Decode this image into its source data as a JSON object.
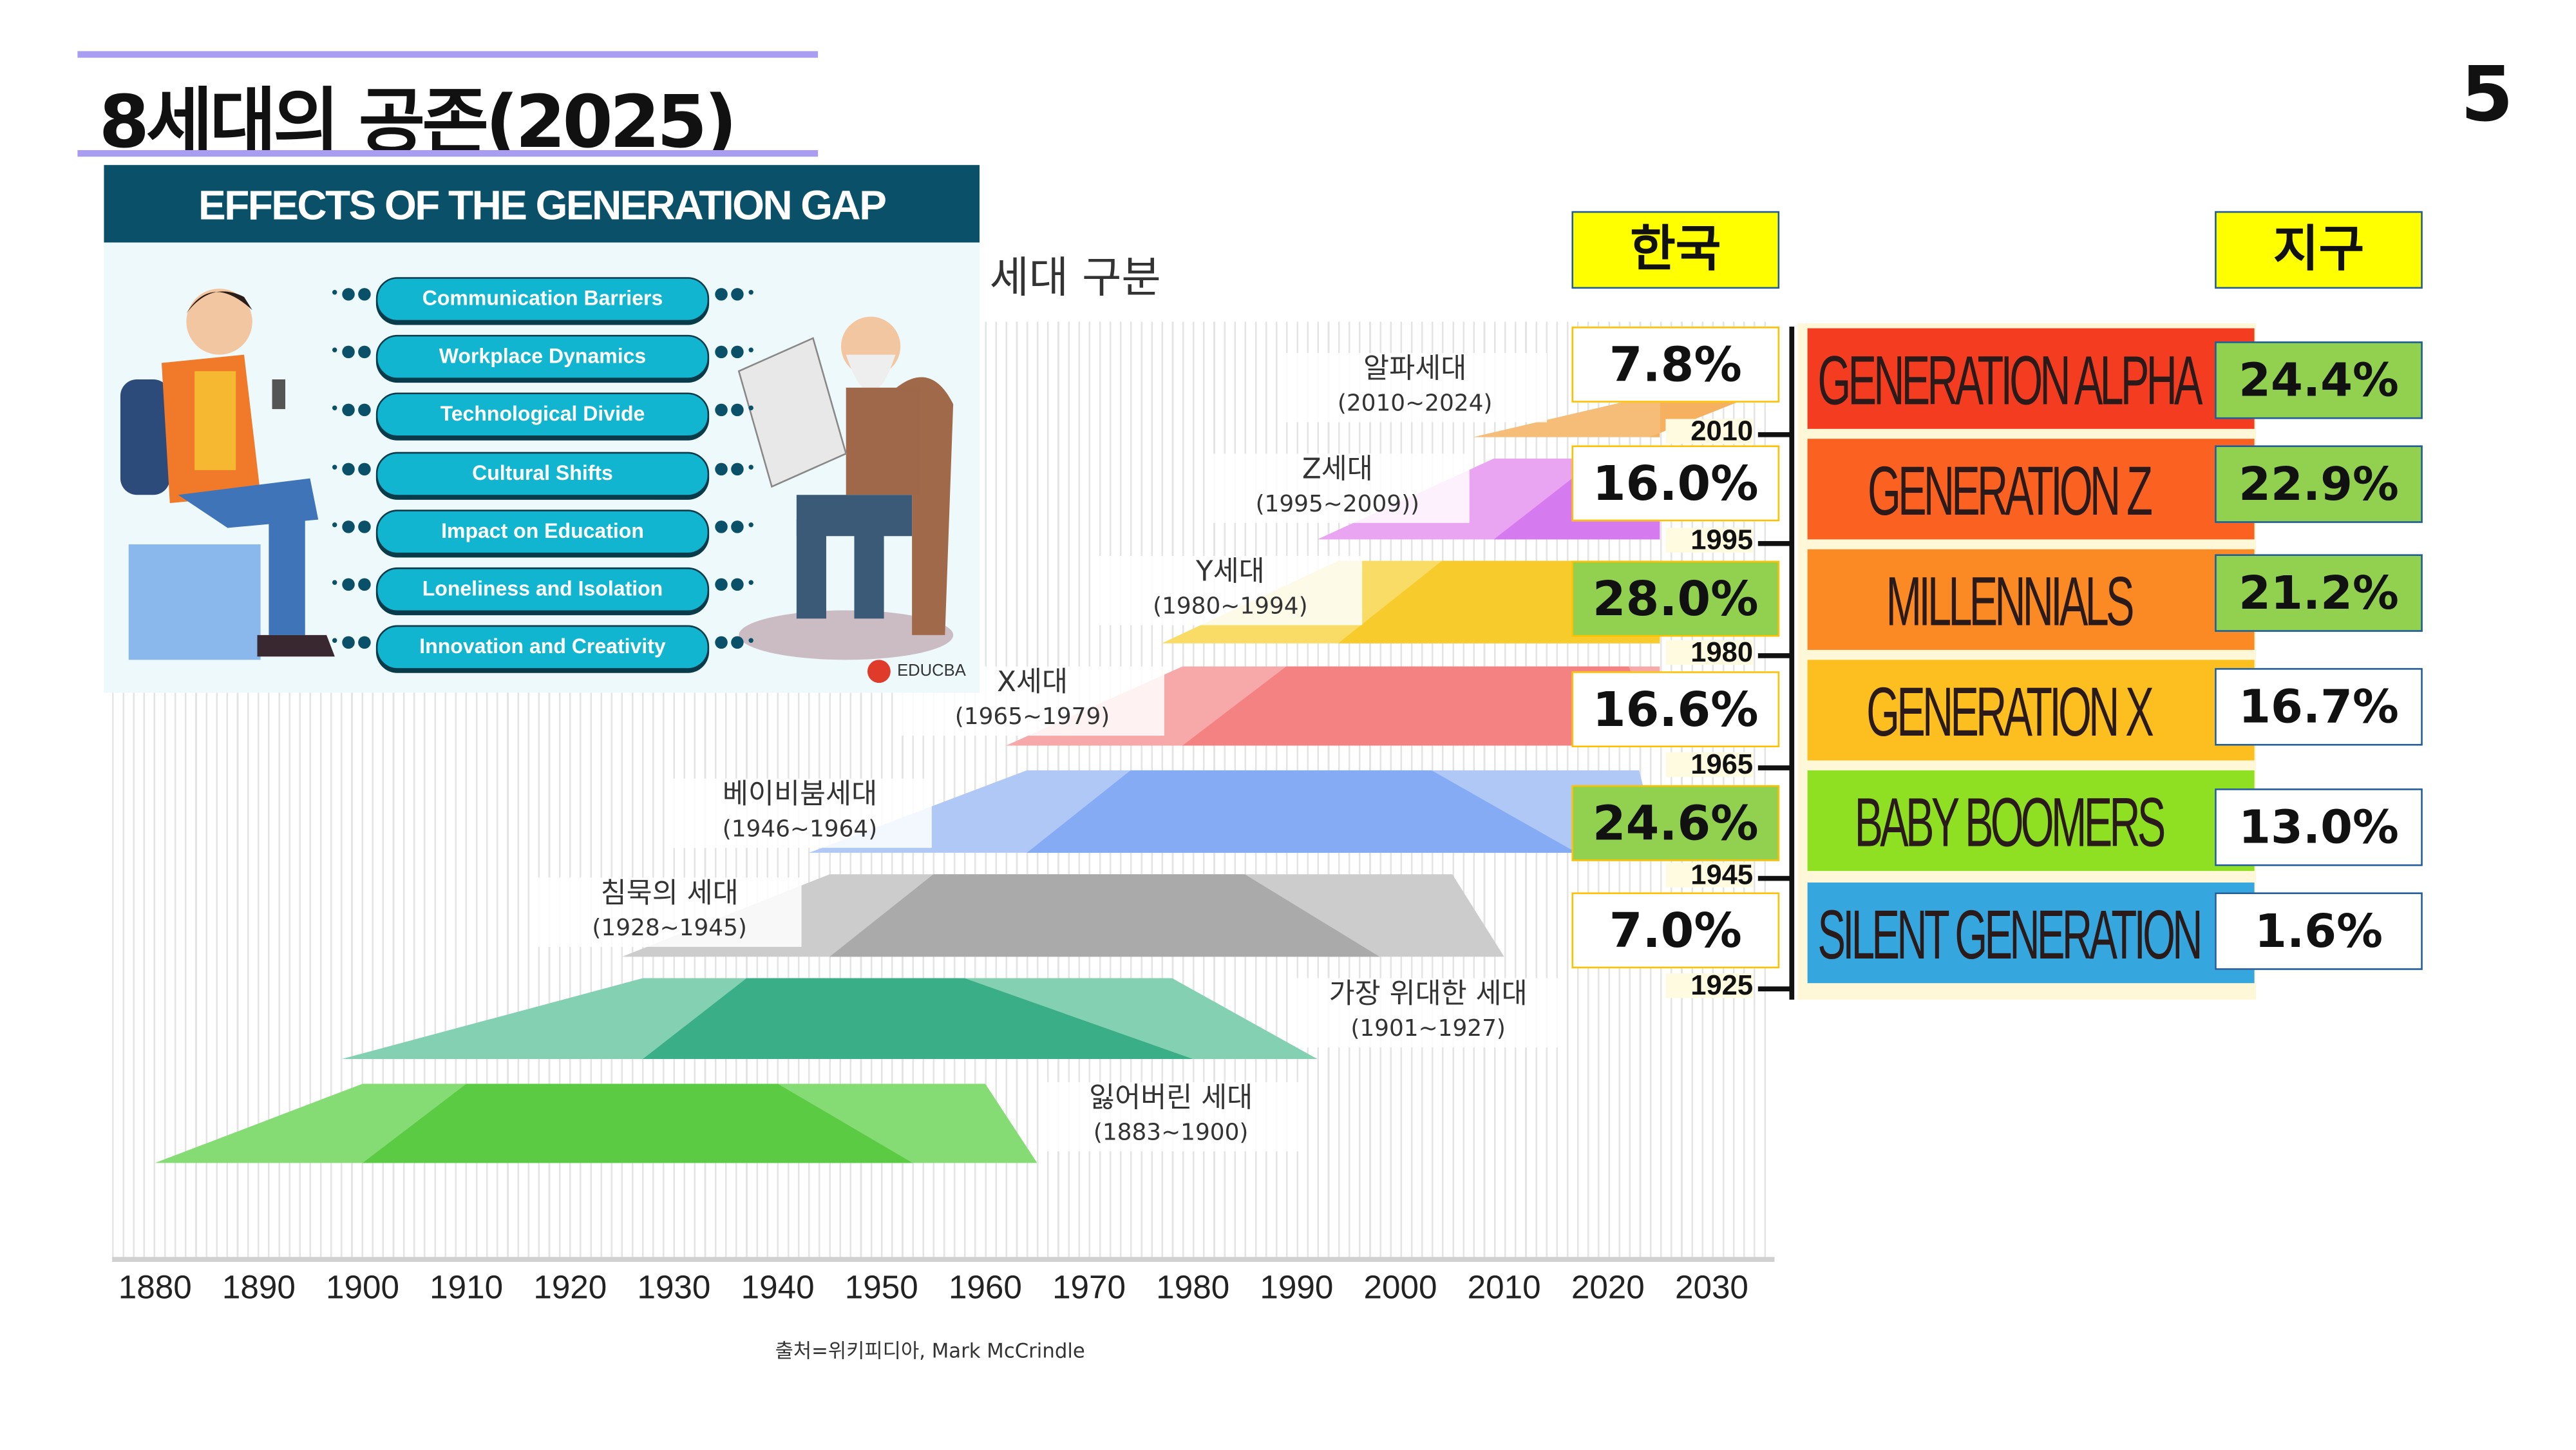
{
  "title": "8세대의 공존(2025)",
  "page_number": "5",
  "infographic": {
    "heading": "EFFECTS OF THE GENERATION GAP",
    "items": [
      "Communication Barriers",
      "Workplace Dynamics",
      "Technological Divide",
      "Cultural Shifts",
      "Impact on Education",
      "Loneliness and Isolation",
      "Innovation and Creativity"
    ],
    "brand": "EDUCBA",
    "header_color": "#0a5068",
    "pill_color": "#11b5cf"
  },
  "timeline": {
    "section_title": "세대 구분",
    "x_ticks": [
      1880,
      1890,
      1900,
      1910,
      1920,
      1930,
      1940,
      1950,
      1960,
      1970,
      1980,
      1990,
      2000,
      2010,
      2020,
      2030
    ],
    "generations": [
      {
        "name": "잃어버린 세대",
        "range": "(1883~1900)",
        "start": 1883,
        "end": 1900,
        "light": "#86dc74",
        "dark": "#5ccb44"
      },
      {
        "name": "가장 위대한 세대",
        "range": "(1901~1927)",
        "start": 1901,
        "end": 1927,
        "light": "#84d0b2",
        "dark": "#3aae86"
      },
      {
        "name": "침묵의 세대",
        "range": "(1928~1945)",
        "start": 1928,
        "end": 1945,
        "light": "#cccccc",
        "dark": "#aaaaaa"
      },
      {
        "name": "베이비붐세대",
        "range": "(1946~1964)",
        "start": 1946,
        "end": 1964,
        "light": "#afc8f6",
        "dark": "#86abf5"
      },
      {
        "name": "X세대",
        "range": "(1965~1979)",
        "start": 1965,
        "end": 1979,
        "light": "#f7a8a8",
        "dark": "#f58282"
      },
      {
        "name": "Y세대",
        "range": "(1980~1994)",
        "start": 1980,
        "end": 1994,
        "light": "#f8dc66",
        "dark": "#f7cb2c"
      },
      {
        "name": "Z세대",
        "range": "(1995~2009))",
        "start": 1995,
        "end": 2009,
        "light": "#e9a4f2",
        "dark": "#d67af0"
      },
      {
        "name": "알파세대",
        "range": "(2010~2024)",
        "start": 2010,
        "end": 2024,
        "light": "#f5bd78",
        "dark": "#f5b060"
      }
    ],
    "source": "출처=위키피디아, Mark McCrindle"
  },
  "korea": {
    "header": "한국",
    "values": [
      "7.8%",
      "16.0%",
      "28.0%",
      "16.6%",
      "24.6%",
      "7.0%"
    ],
    "highlight": [
      false,
      false,
      true,
      false,
      true,
      false
    ],
    "year_marks": [
      "2010",
      "1995",
      "1980",
      "1965",
      "1945",
      "1925"
    ]
  },
  "world": {
    "header": "지구",
    "generations": [
      {
        "label": "GENERATION ALPHA",
        "color": "#f43d20",
        "value": "24.4%",
        "highlight": true
      },
      {
        "label": "GENERATION Z",
        "color": "#fb6221",
        "value": "22.9%",
        "highlight": true
      },
      {
        "label": "MILLENNIALS",
        "color": "#fb8a25",
        "value": "21.2%",
        "highlight": true
      },
      {
        "label": "GENERATION X",
        "color": "#fdbf20",
        "value": "16.7%",
        "highlight": false
      },
      {
        "label": "BABY BOOMERS",
        "color": "#8fe023",
        "value": "13.0%",
        "highlight": false
      },
      {
        "label": "SILENT GENERATION",
        "color": "#36a6de",
        "value": "1.6%",
        "highlight": false
      }
    ]
  },
  "colors": {
    "title_rule": "#a99df2",
    "header_yellow": "#ffff00",
    "highlight_green": "#92d050"
  }
}
